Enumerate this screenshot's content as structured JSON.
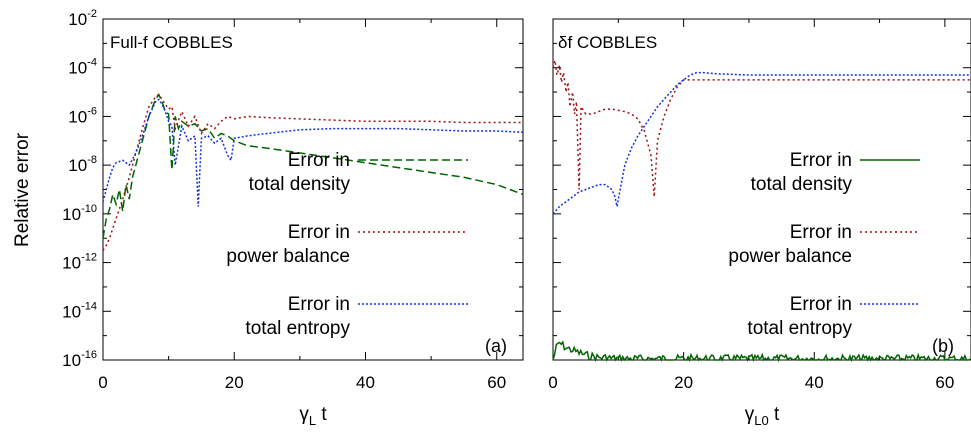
{
  "chart_data": [
    {
      "type": "line",
      "panel_title": "Full-f COBBLES",
      "panel_tag": "(a)",
      "xlabel": {
        "symbol": "γ",
        "subscript": "L",
        "suffix": " t"
      },
      "ylabel": "Relative error",
      "xlim": [
        0,
        64
      ],
      "ylim_log10": [
        -16,
        -2
      ],
      "yscale": "log",
      "x_ticks": [
        0,
        20,
        40,
        60
      ],
      "y_tick_labels": [
        {
          "base": "10",
          "exp": "-2"
        },
        {
          "base": "10",
          "exp": "-4"
        },
        {
          "base": "10",
          "exp": "-6"
        },
        {
          "base": "10",
          "exp": "-8"
        },
        {
          "base": "10",
          "exp": "-10"
        },
        {
          "base": "10",
          "exp": "-12"
        },
        {
          "base": "10",
          "exp": "-14"
        },
        {
          "base": "10",
          "exp": "-16"
        }
      ],
      "series": [
        {
          "name_line1": "Error in",
          "name_line2": "total density",
          "color": "#006400",
          "dash": "8,4",
          "x": [
            0,
            0.5,
            1,
            1.5,
            2,
            2.5,
            3,
            3.5,
            4,
            4.5,
            5,
            6,
            7,
            8,
            8.5,
            9,
            9.5,
            10,
            10.5,
            11,
            11.5,
            12,
            13,
            14,
            15,
            16,
            17,
            18,
            19,
            20,
            22,
            25,
            30,
            35,
            40,
            45,
            50,
            55,
            60,
            64
          ],
          "log_y": [
            -11.0,
            -10.2,
            -9.8,
            -9.2,
            -9.6,
            -9.0,
            -9.9,
            -8.8,
            -9.4,
            -8.5,
            -8.0,
            -7.0,
            -6.0,
            -5.3,
            -5.1,
            -5.4,
            -5.8,
            -5.9,
            -8.2,
            -6.0,
            -6.5,
            -6.2,
            -6.4,
            -6.3,
            -6.6,
            -6.5,
            -6.9,
            -6.7,
            -6.8,
            -7.0,
            -7.2,
            -7.3,
            -7.5,
            -7.7,
            -7.9,
            -8.1,
            -8.3,
            -8.5,
            -8.8,
            -9.2
          ]
        },
        {
          "name_line1": "Error in",
          "name_line2": "power balance",
          "color": "#a01010",
          "dash": "2,3",
          "x": [
            0,
            0.5,
            1,
            1.5,
            2,
            3,
            4,
            5,
            6,
            7,
            8,
            8.5,
            9,
            9.5,
            10,
            10.5,
            11,
            12,
            13,
            14,
            15,
            16,
            17,
            18,
            19,
            20,
            22,
            25,
            30,
            35,
            40,
            45,
            50,
            55,
            60,
            64
          ],
          "log_y": [
            -11.5,
            -11.3,
            -11.0,
            -10.6,
            -10.2,
            -9.4,
            -8.5,
            -7.5,
            -6.5,
            -5.6,
            -5.2,
            -5.1,
            -5.3,
            -5.5,
            -5.7,
            -5.6,
            -6.5,
            -5.8,
            -6.4,
            -6.0,
            -6.7,
            -6.3,
            -6.5,
            -6.2,
            -6.0,
            -6.1,
            -6.0,
            -6.05,
            -6.1,
            -6.15,
            -6.2,
            -6.2,
            -6.2,
            -6.25,
            -6.25,
            -6.25
          ]
        },
        {
          "name_line1": "Error in",
          "name_line2": "total entropy",
          "color": "#1030e0",
          "dash": "2,2",
          "x": [
            0,
            0.5,
            1,
            1.5,
            2,
            3,
            4,
            5,
            6,
            7,
            8,
            8.5,
            9,
            9.5,
            10,
            10.5,
            11,
            12,
            13,
            14,
            14.5,
            15,
            16,
            17,
            18,
            19,
            19.5,
            20,
            22,
            25,
            30,
            35,
            40,
            45,
            50,
            55,
            60,
            64
          ],
          "log_y": [
            -9.5,
            -9.0,
            -8.5,
            -8.1,
            -7.9,
            -7.8,
            -8.0,
            -7.5,
            -6.8,
            -6.0,
            -5.4,
            -5.3,
            -5.5,
            -5.8,
            -6.2,
            -6.4,
            -8.0,
            -6.4,
            -7.0,
            -6.8,
            -9.7,
            -6.9,
            -6.8,
            -7.1,
            -6.9,
            -7.6,
            -7.8,
            -6.9,
            -6.8,
            -6.7,
            -6.55,
            -6.5,
            -6.5,
            -6.5,
            -6.55,
            -6.6,
            -6.6,
            -6.65
          ]
        }
      ]
    },
    {
      "type": "line",
      "panel_title_symbol": "δ",
      "panel_title_rest": "f COBBLES",
      "panel_tag": "(b)",
      "xlabel": {
        "symbol": "γ",
        "subscript": "L0",
        "suffix": " t"
      },
      "ylabel": "",
      "xlim": [
        0,
        64
      ],
      "ylim_log10": [
        -16,
        -2
      ],
      "yscale": "log",
      "x_ticks": [
        0,
        20,
        40,
        60
      ],
      "series": [
        {
          "name_line1": "Error in",
          "name_line2": "total density",
          "color": "#006400",
          "dash": "",
          "noisy_floor": true,
          "x": [
            0,
            0.5,
            1,
            1.5,
            2,
            3,
            4,
            5,
            6,
            7,
            8,
            10,
            15,
            20,
            30,
            40,
            50,
            60,
            64
          ],
          "log_y": [
            -16.0,
            -15.5,
            -15.3,
            -15.4,
            -15.5,
            -15.6,
            -15.7,
            -15.8,
            -15.85,
            -15.9,
            -15.9,
            -15.95,
            -15.95,
            -15.95,
            -15.95,
            -15.95,
            -15.95,
            -15.95,
            -15.95
          ]
        },
        {
          "name_line1": "Error in",
          "name_line2": "power balance",
          "color": "#a01010",
          "dash": "2,3",
          "x": [
            0,
            0.3,
            0.6,
            1.0,
            1.3,
            1.6,
            2.0,
            2.3,
            2.6,
            3.0,
            3.3,
            3.6,
            4.0,
            4.3,
            5,
            6,
            7,
            8,
            9,
            10,
            11,
            12,
            13,
            14,
            15,
            15.5,
            16,
            17,
            18,
            19,
            20,
            22,
            25,
            30,
            35,
            40,
            45,
            50,
            55,
            60,
            64
          ],
          "log_y": [
            -4.0,
            -3.7,
            -4.3,
            -3.9,
            -4.6,
            -4.2,
            -5.0,
            -4.6,
            -5.6,
            -5.0,
            -5.9,
            -5.4,
            -9.0,
            -5.6,
            -5.9,
            -5.9,
            -5.8,
            -5.7,
            -5.7,
            -5.75,
            -5.8,
            -5.9,
            -6.1,
            -6.6,
            -7.6,
            -9.3,
            -7.0,
            -6.0,
            -5.3,
            -4.8,
            -4.5,
            -4.5,
            -4.5,
            -4.5,
            -4.5,
            -4.5,
            -4.5,
            -4.5,
            -4.5,
            -4.5,
            -4.5
          ]
        },
        {
          "name_line1": "Error in",
          "name_line2": "total entropy",
          "color": "#1030e0",
          "dash": "2,2",
          "x": [
            0,
            1,
            2,
            3,
            4,
            5,
            6,
            7,
            8,
            9,
            9.5,
            9.8,
            10,
            11,
            12,
            13,
            14,
            15,
            16,
            17,
            18,
            19,
            20,
            21,
            22,
            23,
            25,
            30,
            35,
            40,
            45,
            50,
            55,
            60,
            64
          ],
          "log_y": [
            -10.0,
            -9.7,
            -9.5,
            -9.3,
            -9.1,
            -9.0,
            -8.9,
            -8.8,
            -8.8,
            -9.0,
            -9.3,
            -9.7,
            -9.4,
            -8.0,
            -7.3,
            -6.8,
            -6.4,
            -6.0,
            -5.6,
            -5.3,
            -5.0,
            -4.7,
            -4.5,
            -4.3,
            -4.2,
            -4.2,
            -4.25,
            -4.3,
            -4.3,
            -4.3,
            -4.3,
            -4.3,
            -4.3,
            -4.3,
            -4.3
          ]
        }
      ]
    }
  ]
}
